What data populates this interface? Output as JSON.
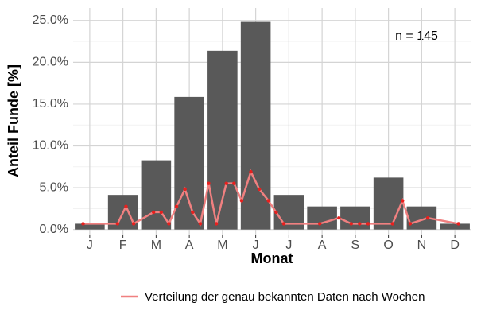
{
  "chart_data": {
    "type": "bar",
    "y_label": "Anteil Funde [%]",
    "x_label": "Monat",
    "annotation": "n = 145",
    "categories": [
      "J",
      "F",
      "M",
      "A",
      "M",
      "J",
      "J",
      "A",
      "S",
      "O",
      "N",
      "D"
    ],
    "values": [
      0.69,
      4.14,
      8.28,
      15.86,
      21.38,
      24.83,
      4.14,
      2.76,
      2.76,
      6.21,
      2.76,
      0.69
    ],
    "color": "#595959",
    "ylim": [
      -0.6,
      26.5
    ],
    "yticks": [
      {
        "value": 0,
        "label": "0.0%"
      },
      {
        "value": 5,
        "label": "5.0%"
      },
      {
        "value": 10,
        "label": "10.0%"
      },
      {
        "value": 15,
        "label": "15.0%"
      },
      {
        "value": 20,
        "label": "20.0%"
      },
      {
        "value": 25,
        "label": "25.0%"
      }
    ],
    "grid": true,
    "line": {
      "type": "line",
      "name": "Verteilung der genau bekannten Daten nach Wochen",
      "color": "#f08080",
      "point_color": "#e8201e",
      "xlim": [
        0,
        52
      ],
      "x": [
        1.3,
        5.8,
        6.9,
        7.9,
        10.5,
        11.5,
        12.5,
        13.5,
        14.6,
        15.6,
        16.6,
        17.7,
        18.7,
        20,
        21,
        22,
        23.2,
        24.3,
        25.5,
        26.5,
        27.5,
        32.2,
        34.7,
        36.3,
        37.4,
        38.5,
        41.7,
        43,
        44,
        46.3,
        50.3
      ],
      "values": [
        0.69,
        0.69,
        2.76,
        0.69,
        2.07,
        2.07,
        0.69,
        2.76,
        4.83,
        2.07,
        0.69,
        5.52,
        0.69,
        5.52,
        5.52,
        3.45,
        6.9,
        4.83,
        3.45,
        2.07,
        0.69,
        0.69,
        1.38,
        0.69,
        0.69,
        0.69,
        0.69,
        3.45,
        0.69,
        1.38,
        0.69
      ]
    },
    "legend": "bottom"
  }
}
